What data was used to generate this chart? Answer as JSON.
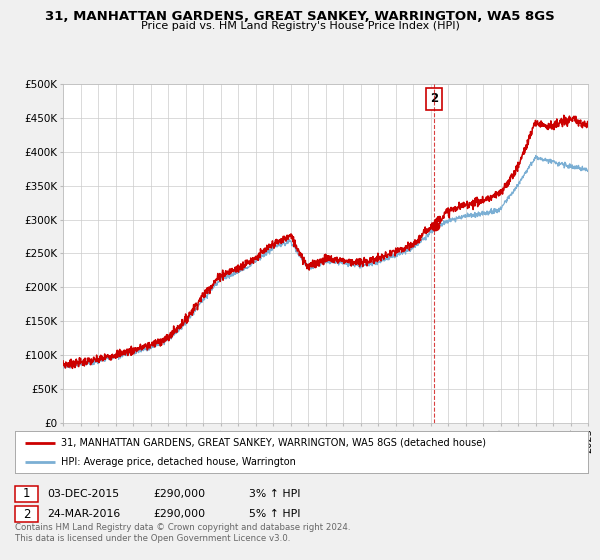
{
  "title": "31, MANHATTAN GARDENS, GREAT SANKEY, WARRINGTON, WA5 8GS",
  "subtitle": "Price paid vs. HM Land Registry's House Price Index (HPI)",
  "red_label": "31, MANHATTAN GARDENS, GREAT SANKEY, WARRINGTON, WA5 8GS (detached house)",
  "blue_label": "HPI: Average price, detached house, Warrington",
  "annotation1_date": "03-DEC-2015",
  "annotation1_price": "£290,000",
  "annotation1_hpi": "3% ↑ HPI",
  "annotation2_date": "24-MAR-2016",
  "annotation2_price": "£290,000",
  "annotation2_hpi": "5% ↑ HPI",
  "footnote1": "Contains HM Land Registry data © Crown copyright and database right 2024.",
  "footnote2": "This data is licensed under the Open Government Licence v3.0.",
  "xmin": 1995,
  "xmax": 2025,
  "ymin": 0,
  "ymax": 500000,
  "yticks": [
    0,
    50000,
    100000,
    150000,
    200000,
    250000,
    300000,
    350000,
    400000,
    450000,
    500000
  ],
  "marker2_x": 2016.23,
  "marker2_y": 290000,
  "vline_x": 2016.2,
  "red_color": "#cc0000",
  "blue_color": "#7bafd4",
  "bg_color": "#f0f0f0",
  "plot_bg": "#ffffff",
  "grid_color": "#cccccc"
}
